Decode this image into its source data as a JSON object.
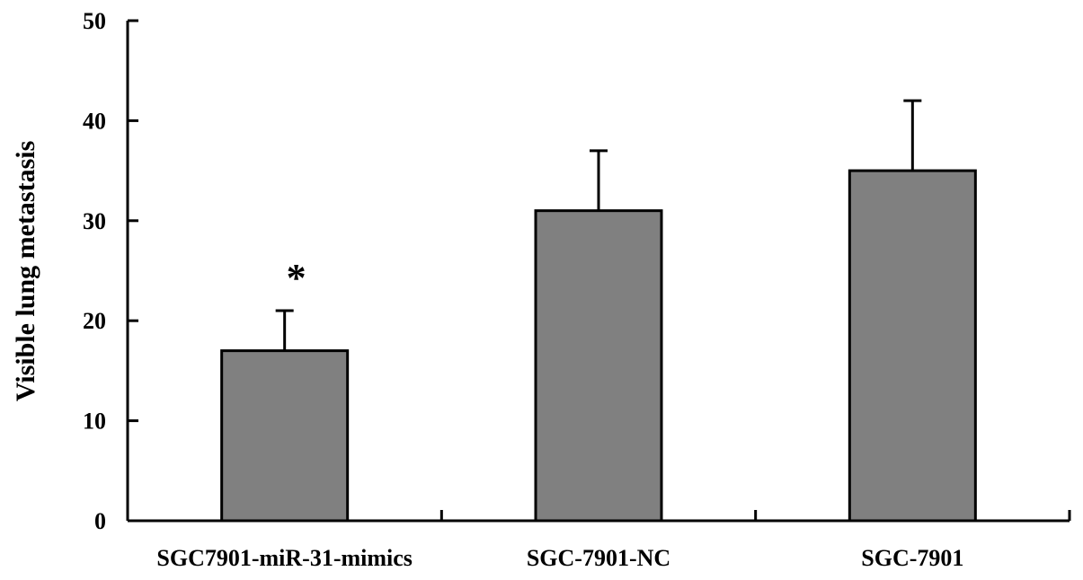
{
  "chart_data": {
    "type": "bar",
    "categories": [
      "SGC7901-miR-31-mimics",
      "SGC-7901-NC",
      "SGC-7901"
    ],
    "values": [
      17,
      31,
      35
    ],
    "errors": [
      4,
      6,
      7
    ],
    "annotations": [
      "*",
      "",
      ""
    ],
    "ylabel": "Visible lung metastasis",
    "xlabel": "",
    "ylim": [
      0,
      50
    ],
    "yticks": [
      0,
      10,
      20,
      30,
      40,
      50
    ],
    "bar_color": "#808080",
    "grid": false,
    "legend": "none"
  }
}
